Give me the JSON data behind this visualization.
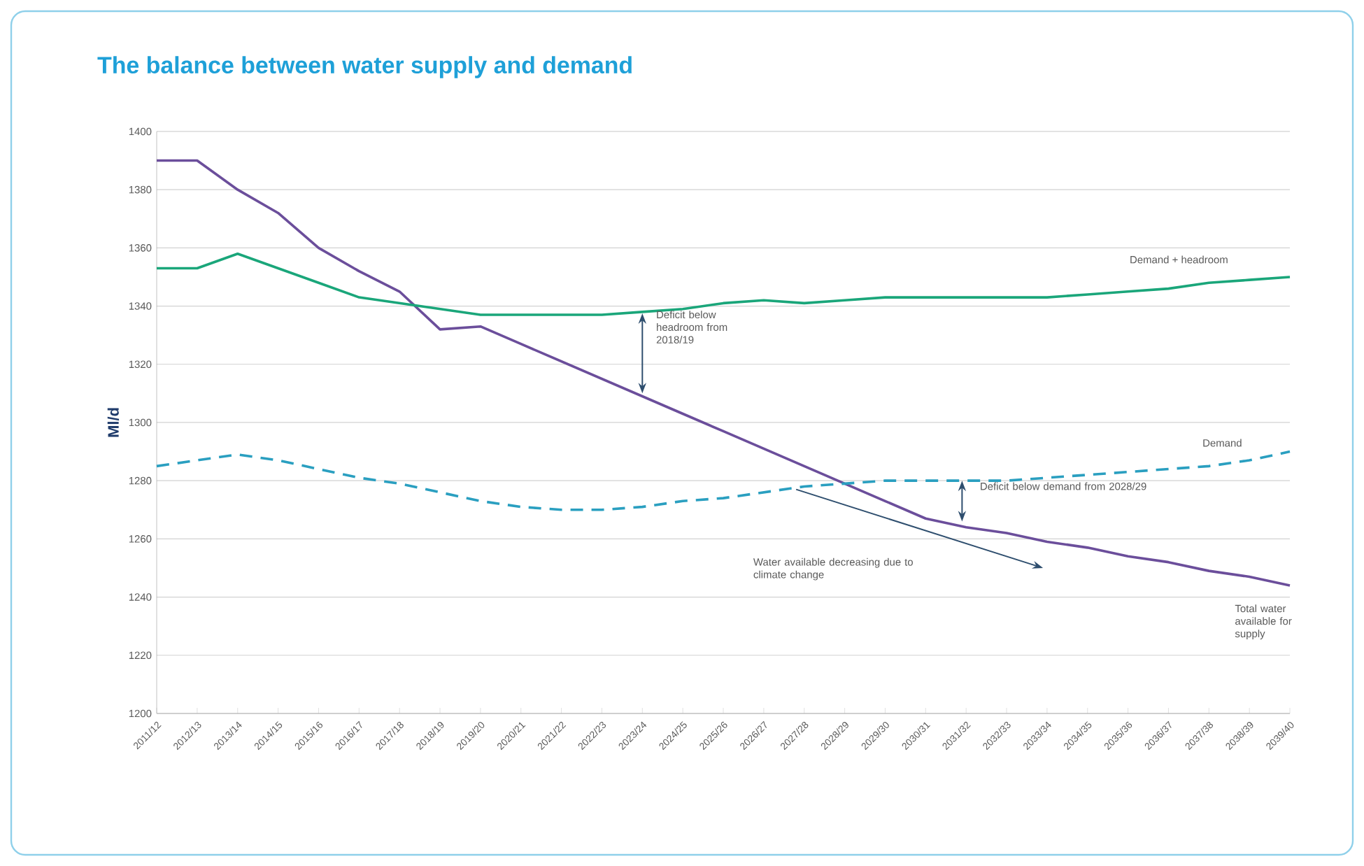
{
  "chart_data": {
    "type": "line",
    "title": "The balance between water supply and demand",
    "ylabel": "Ml/d",
    "categories": [
      "2011/12",
      "2012/13",
      "2013/14",
      "2014/15",
      "2015/16",
      "2016/17",
      "2017/18",
      "2018/19",
      "2019/20",
      "2020/21",
      "2021/22",
      "2022/23",
      "2023/24",
      "2024/25",
      "2025/26",
      "2026/27",
      "2027/28",
      "2028/29",
      "2029/30",
      "2030/31",
      "2031/32",
      "2032/33",
      "2033/34",
      "2034/35",
      "2035/36",
      "2036/37",
      "2037/38",
      "2038/39",
      "2039/40"
    ],
    "series": [
      {
        "name": "Total water available for supply",
        "color": "#6b4e9b",
        "line_style": "solid",
        "values": [
          1390,
          1390,
          1380,
          1372,
          1360,
          1352,
          1345,
          1332,
          1333,
          1327,
          1321,
          1315,
          1309,
          1303,
          1297,
          1291,
          1285,
          1279,
          1273,
          1267,
          1264,
          1262,
          1259,
          1257,
          1254,
          1252,
          1249,
          1247,
          1244
        ]
      },
      {
        "name": "Demand + headroom",
        "color": "#1aa67a",
        "line_style": "solid",
        "values": [
          1353,
          1353,
          1358,
          1353,
          1348,
          1343,
          1341,
          1339,
          1337,
          1337,
          1337,
          1337,
          1338,
          1339,
          1341,
          1342,
          1341,
          1342,
          1343,
          1343,
          1343,
          1343,
          1343,
          1344,
          1345,
          1346,
          1348,
          1349,
          1350
        ]
      },
      {
        "name": "Demand",
        "color": "#2a9fc0",
        "line_style": "dashed",
        "values": [
          1285,
          1287,
          1289,
          1287,
          1284,
          1281,
          1279,
          1276,
          1273,
          1271,
          1270,
          1270,
          1271,
          1273,
          1274,
          1276,
          1278,
          1279,
          1280,
          1280,
          1280,
          1280,
          1281,
          1282,
          1283,
          1284,
          1285,
          1287,
          1290
        ]
      }
    ],
    "annotations": [
      "Deficit below headroom from 2018/19",
      "Deficit below demand from 2028/29",
      "Water available decreasing due to climate change"
    ],
    "ylim": [
      1200,
      1400
    ],
    "yticks": [
      1200,
      1220,
      1240,
      1260,
      1280,
      1300,
      1320,
      1340,
      1360,
      1380,
      1400
    ],
    "grid": "y",
    "legend": false
  }
}
